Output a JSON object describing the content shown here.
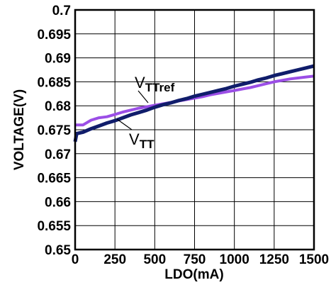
{
  "chart_data": {
    "type": "line",
    "title": "",
    "xlabel": "LDO(mA)",
    "ylabel": "VOLTAGE(V)",
    "xlim": [
      0,
      1500
    ],
    "ylim": [
      0.65,
      0.7
    ],
    "xticks": [
      0,
      250,
      500,
      750,
      1000,
      1250,
      1500
    ],
    "xtick_labels": [
      "0",
      "250",
      "500",
      "750",
      "1000",
      "1250",
      "1500"
    ],
    "yticks": [
      0.65,
      0.655,
      0.66,
      0.665,
      0.67,
      0.675,
      0.68,
      0.685,
      0.69,
      0.695,
      0.7
    ],
    "ytick_labels": [
      "0.65",
      "0.655",
      "0.66",
      "0.665",
      "0.67",
      "0.675",
      "0.68",
      "0.685",
      "0.69",
      "0.695",
      "0.7"
    ],
    "grid": true,
    "series": [
      {
        "color": "#9b4ee6",
        "x": [
          0,
          50,
          100,
          150,
          200,
          250,
          300,
          350,
          400,
          450,
          500,
          550,
          600,
          650,
          700,
          750,
          800,
          850,
          900,
          950,
          1000,
          1050,
          1100,
          1150,
          1200,
          1250,
          1300,
          1350,
          1400,
          1450,
          1500
        ],
        "y": [
          0.676,
          0.676,
          0.677,
          0.6775,
          0.6777,
          0.6782,
          0.6787,
          0.6791,
          0.6795,
          0.6798,
          0.6801,
          0.6804,
          0.6807,
          0.681,
          0.6813,
          0.6816,
          0.6819,
          0.6823,
          0.6826,
          0.6829,
          0.6832,
          0.6835,
          0.6838,
          0.6842,
          0.6846,
          0.685,
          0.6853,
          0.6856,
          0.6858,
          0.686,
          0.6862
        ]
      },
      {
        "color": "#101d6b",
        "x": [
          0,
          10,
          50,
          100,
          150,
          200,
          250,
          300,
          350,
          400,
          450,
          500,
          550,
          600,
          650,
          700,
          750,
          800,
          850,
          900,
          950,
          1000,
          1050,
          1100,
          1150,
          1200,
          1250,
          1300,
          1350,
          1400,
          1450,
          1500
        ],
        "y": [
          0.6725,
          0.6742,
          0.6745,
          0.6752,
          0.6758,
          0.6764,
          0.6769,
          0.6775,
          0.6781,
          0.6786,
          0.6791,
          0.6797,
          0.6802,
          0.6806,
          0.6811,
          0.6815,
          0.682,
          0.6824,
          0.6828,
          0.6832,
          0.6836,
          0.6841,
          0.6845,
          0.6849,
          0.6854,
          0.6858,
          0.6863,
          0.6867,
          0.6871,
          0.6875,
          0.6879,
          0.6883
        ]
      }
    ],
    "annotations": [
      {
        "main": "V",
        "sub": "TTref"
      },
      {
        "main": "V",
        "sub": "TT"
      }
    ]
  }
}
